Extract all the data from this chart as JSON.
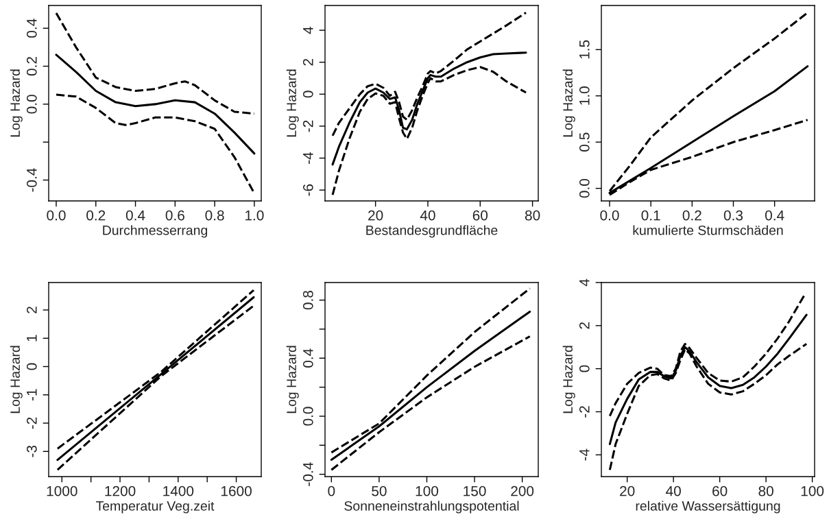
{
  "chart_data": [
    {
      "type": "line",
      "xlabel": "Durchmesserrang",
      "ylabel": "Log Hazard",
      "xlim": [
        -0.038,
        1.035
      ],
      "ylim": [
        -0.51,
        0.52
      ],
      "xticks": [
        {
          "value": 0,
          "label": "0.0"
        },
        0.2,
        0.4,
        0.6,
        0.8,
        {
          "value": 1,
          "label": "1.0"
        }
      ],
      "yticks": [
        -0.4,
        {
          "value": -0.2,
          "label": null
        },
        {
          "value": 0,
          "label": "0.0"
        },
        0.2,
        0.4
      ],
      "grid": false,
      "series": [
        {
          "color": "#000000",
          "line_style": "solid",
          "x": [
            0,
            0.1,
            0.2,
            0.3,
            0.4,
            0.5,
            0.6,
            0.7,
            0.8,
            0.9,
            1.0
          ],
          "values": [
            0.26,
            0.17,
            0.07,
            0.01,
            -0.01,
            0.0,
            0.02,
            0.01,
            -0.05,
            -0.15,
            -0.26
          ]
        },
        {
          "color": "#000000",
          "line_style": "dashed",
          "x": [
            0,
            0.1,
            0.2,
            0.3,
            0.4,
            0.5,
            0.6,
            0.65,
            0.7,
            0.8,
            0.9,
            1.0
          ],
          "values": [
            0.48,
            0.3,
            0.14,
            0.09,
            0.07,
            0.08,
            0.11,
            0.12,
            0.1,
            0.02,
            -0.04,
            -0.05
          ]
        },
        {
          "color": "#000000",
          "line_style": "dashed",
          "x": [
            0,
            0.1,
            0.2,
            0.3,
            0.35,
            0.4,
            0.5,
            0.6,
            0.7,
            0.8,
            0.9,
            1.0
          ],
          "values": [
            0.05,
            0.04,
            -0.02,
            -0.1,
            -0.11,
            -0.1,
            -0.07,
            -0.07,
            -0.09,
            -0.13,
            -0.28,
            -0.47
          ]
        }
      ]
    },
    {
      "type": "line",
      "xlabel": "Bestandesgrundfläche",
      "ylabel": "Log Hazard",
      "xlim": [
        0.7,
        82.2
      ],
      "ylim": [
        -6.68,
        5.55
      ],
      "xticks": [
        20,
        40,
        60,
        80
      ],
      "yticks": [
        -6,
        -4,
        -2,
        0,
        2,
        4
      ],
      "grid": false,
      "series": [
        {
          "color": "#000000",
          "line_style": "solid",
          "x": [
            3.6,
            6,
            10,
            14,
            17,
            20,
            23,
            25.5,
            27.5,
            29,
            30.5,
            32,
            34,
            36,
            38,
            40,
            41,
            43,
            45,
            50,
            55,
            60,
            65,
            70,
            77.5
          ],
          "values": [
            -4.4,
            -3.3,
            -1.8,
            -0.5,
            0.1,
            0.35,
            0.1,
            -0.3,
            -0.2,
            -1.0,
            -2.1,
            -2.2,
            -1.6,
            -0.6,
            0.2,
            1.0,
            1.2,
            1.1,
            1.1,
            1.6,
            2.0,
            2.3,
            2.5,
            2.55,
            2.6
          ]
        },
        {
          "color": "#000000",
          "line_style": "dashed",
          "x": [
            3.6,
            6,
            10,
            14,
            17,
            20,
            23,
            25.5,
            27.5,
            29,
            30.5,
            32,
            34,
            36,
            38,
            40,
            41,
            43,
            45,
            50,
            55,
            60,
            65,
            70,
            77.5
          ],
          "values": [
            -2.6,
            -1.8,
            -0.9,
            0,
            0.5,
            0.65,
            0.4,
            -0.1,
            0.15,
            -0.5,
            -1.4,
            -1.6,
            -1.0,
            -0.2,
            0.5,
            1.3,
            1.45,
            1.3,
            1.45,
            2.1,
            2.8,
            3.3,
            3.8,
            4.3,
            5.1
          ]
        },
        {
          "color": "#000000",
          "line_style": "dashed",
          "x": [
            3.6,
            6,
            10,
            14,
            17,
            20,
            23,
            25.5,
            27.5,
            29,
            30.5,
            32,
            34,
            36,
            38,
            40,
            41,
            43,
            45,
            50,
            55,
            60,
            65,
            70,
            77.5
          ],
          "values": [
            -6.3,
            -4.8,
            -2.8,
            -1.1,
            -0.3,
            0.05,
            -0.1,
            -0.6,
            -0.5,
            -1.5,
            -2.4,
            -2.8,
            -2.1,
            -1.0,
            -0.1,
            0.7,
            1.0,
            0.8,
            0.8,
            1.2,
            1.5,
            1.7,
            1.4,
            0.8,
            0.1
          ]
        }
      ]
    },
    {
      "type": "line",
      "xlabel": "kumulierte Sturmschäden",
      "ylabel": "Log Hazard",
      "xlim": [
        -0.02,
        0.497
      ],
      "ylim": [
        -0.136,
        1.977
      ],
      "xticks": [
        {
          "value": 0,
          "label": "0.0"
        },
        0.1,
        0.2,
        0.3,
        0.4
      ],
      "yticks": [
        {
          "value": 0,
          "label": "0.0"
        },
        0.5,
        {
          "value": 1,
          "label": "1.0"
        },
        1.5
      ],
      "grid": false,
      "series": [
        {
          "color": "#000000",
          "line_style": "solid",
          "x": [
            0,
            0.1,
            0.2,
            0.3,
            0.4,
            0.48
          ],
          "values": [
            -0.05,
            0.22,
            0.5,
            0.78,
            1.05,
            1.32
          ]
        },
        {
          "color": "#000000",
          "line_style": "dashed",
          "x": [
            0,
            0.05,
            0.1,
            0.2,
            0.3,
            0.4,
            0.48
          ],
          "values": [
            -0.03,
            0.25,
            0.55,
            0.95,
            1.3,
            1.62,
            1.9
          ]
        },
        {
          "color": "#000000",
          "line_style": "dashed",
          "x": [
            0,
            0.05,
            0.1,
            0.2,
            0.3,
            0.4,
            0.48
          ],
          "values": [
            -0.07,
            0.07,
            0.2,
            0.34,
            0.5,
            0.63,
            0.74
          ]
        }
      ]
    },
    {
      "type": "line",
      "xlabel": "Temperatur Veg.zeit",
      "ylabel": "Log Hazard",
      "xlim": [
        954.5,
        1686
      ],
      "ylim": [
        -3.89,
        2.97
      ],
      "xticks": [
        1000,
        {
          "value": 1100,
          "label": null
        },
        1200,
        {
          "value": 1300,
          "label": null
        },
        1400,
        {
          "value": 1500,
          "label": null
        },
        1600
      ],
      "yticks": [
        -3,
        -2,
        -1,
        0,
        1,
        2
      ],
      "grid": false,
      "series": [
        {
          "color": "#000000",
          "line_style": "solid",
          "x": [
            985,
            1340,
            1660
          ],
          "values": [
            -3.3,
            -0.28,
            2.45
          ]
        },
        {
          "color": "#000000",
          "line_style": "dashed",
          "x": [
            985,
            1340,
            1660
          ],
          "values": [
            -2.9,
            -0.2,
            2.7
          ]
        },
        {
          "color": "#000000",
          "line_style": "dashed",
          "x": [
            985,
            1340,
            1660
          ],
          "values": [
            -3.65,
            -0.35,
            2.15
          ]
        }
      ]
    },
    {
      "type": "line",
      "xlabel": "Sonneneinstrahlungspotential",
      "ylabel": "Log Hazard",
      "xlim": [
        -6.7,
        216.8
      ],
      "ylim": [
        -0.416,
        0.921
      ],
      "xticks": [
        0,
        50,
        100,
        150,
        200
      ],
      "yticks": [
        -0.4,
        {
          "value": -0.2,
          "label": null
        },
        {
          "value": 0,
          "label": "0.0"
        },
        {
          "value": 0.2,
          "label": null
        },
        0.4,
        {
          "value": 0.6,
          "label": null
        },
        0.8
      ],
      "grid": false,
      "series": [
        {
          "color": "#000000",
          "line_style": "solid",
          "x": [
            0,
            50,
            100,
            150,
            208
          ],
          "values": [
            -0.3,
            -0.07,
            0.2,
            0.45,
            0.72
          ]
        },
        {
          "color": "#000000",
          "line_style": "dashed",
          "x": [
            0,
            50,
            100,
            150,
            208
          ],
          "values": [
            -0.25,
            -0.05,
            0.28,
            0.58,
            0.88
          ]
        },
        {
          "color": "#000000",
          "line_style": "dashed",
          "x": [
            0,
            50,
            100,
            150,
            208
          ],
          "values": [
            -0.37,
            -0.11,
            0.13,
            0.34,
            0.55
          ]
        }
      ]
    },
    {
      "type": "line",
      "xlabel": "relative Wassersättigung",
      "ylabel": "Log Hazard",
      "xlim": [
        8.84,
        101
      ],
      "ylim": [
        -5.01,
        4
      ],
      "xticks": [
        20,
        40,
        60,
        80,
        100
      ],
      "yticks": [
        -4,
        -2,
        0,
        2,
        4
      ],
      "grid": false,
      "series": [
        {
          "color": "#000000",
          "line_style": "solid",
          "x": [
            12.5,
            15,
            20,
            25,
            30,
            33,
            36,
            39,
            41,
            43,
            45,
            47,
            50,
            55,
            60,
            65,
            70,
            75,
            80,
            85,
            90,
            97.5
          ],
          "values": [
            -3.5,
            -2.5,
            -1.4,
            -0.5,
            -0.15,
            -0.15,
            -0.35,
            -0.45,
            -0.1,
            0.6,
            1.0,
            0.8,
            0.3,
            -0.4,
            -0.8,
            -0.9,
            -0.75,
            -0.4,
            0.1,
            0.7,
            1.4,
            2.5
          ]
        },
        {
          "color": "#000000",
          "line_style": "dashed",
          "x": [
            12.5,
            15,
            20,
            25,
            30,
            33,
            36,
            39,
            41,
            43,
            45,
            47,
            50,
            55,
            60,
            65,
            70,
            75,
            80,
            85,
            90,
            96.5
          ],
          "values": [
            -2.2,
            -1.6,
            -0.7,
            -0.2,
            0.05,
            0.0,
            -0.3,
            -0.35,
            0.0,
            0.8,
            1.15,
            0.95,
            0.5,
            -0.2,
            -0.55,
            -0.6,
            -0.4,
            0.1,
            0.7,
            1.4,
            2.2,
            3.4
          ]
        },
        {
          "color": "#000000",
          "line_style": "dashed",
          "x": [
            12.5,
            15,
            20,
            25,
            30,
            33,
            36,
            39,
            41,
            43,
            45,
            47,
            50,
            55,
            60,
            65,
            70,
            75,
            80,
            85,
            90,
            97.5
          ],
          "values": [
            -4.7,
            -3.5,
            -2.1,
            -0.8,
            -0.3,
            -0.25,
            -0.45,
            -0.55,
            -0.2,
            0.4,
            0.9,
            0.7,
            0.1,
            -0.7,
            -1.1,
            -1.2,
            -1.05,
            -0.7,
            -0.3,
            0.2,
            0.6,
            1.15
          ]
        }
      ]
    }
  ]
}
